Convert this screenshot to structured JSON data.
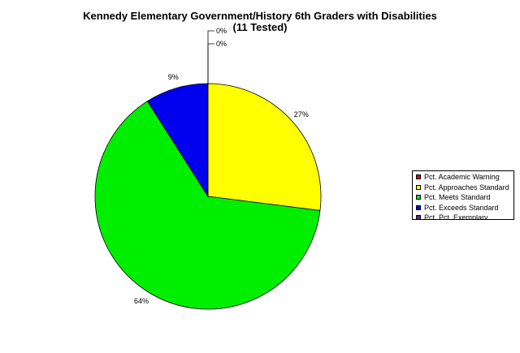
{
  "chart_data": {
    "type": "pie",
    "title": "Kennedy Elementary Government/History 6th Graders with Disabilities",
    "subtitle": "(11 Tested)",
    "slices": [
      {
        "name": "Pct. Academic Warning",
        "value": 0,
        "label": "0%",
        "color": "#e00000"
      },
      {
        "name": "Pct. Approaches Standard",
        "value": 27,
        "label": "27%",
        "color": "#ffff00"
      },
      {
        "name": "Pct. Meets Standard",
        "value": 64,
        "label": "64%",
        "color": "#00ee00"
      },
      {
        "name": "Pct. Exceeds Standard",
        "value": 9,
        "label": "9%",
        "color": "#0000ee"
      },
      {
        "name": "Pct. Pct. Exemplary",
        "value": 0,
        "label": "0%",
        "color": "#5a2d8c"
      }
    ],
    "legend_position": "right"
  }
}
